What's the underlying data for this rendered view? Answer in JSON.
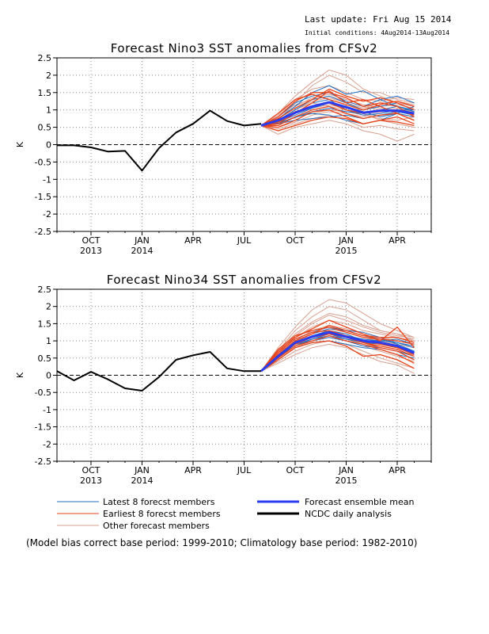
{
  "header": {
    "last_update": "Last update: Fri Aug 15 2014",
    "initial_conditions": "Initial conditions: 4Aug2014-13Aug2014"
  },
  "colors": {
    "latest": "#1f6fc4",
    "earliest": "#e8431a",
    "other": "#d8a090",
    "mean": "#2a3cf0",
    "analysis": "#000000",
    "grid": "#888888",
    "zero_line": "#000000"
  },
  "legend": {
    "latest": "Latest 8 forecst members",
    "earliest": "Earliest 8 forecst members",
    "other": "Other forecast members",
    "mean": "Forecast ensemble mean",
    "analysis": "NCDC daily analysis"
  },
  "footnote": "(Model bias correct base period: 1999-2010; Climatology base period: 1982-2010)",
  "chart_data": [
    {
      "type": "line",
      "title": "Forecast Nino3 SST anomalies from CFSv2",
      "ylabel": "K",
      "ylim": [
        -2.5,
        2.5
      ],
      "yticks": [
        "2.5",
        "2",
        "1.5",
        "1",
        "0.5",
        "0",
        "-0.5",
        "-1",
        "-1.5",
        "-2",
        "-2.5"
      ],
      "x_range_months": [
        "2013-08",
        "2015-06"
      ],
      "xtick_labels": [
        {
          "month": "2013-10",
          "label": "OCT",
          "year": "2013"
        },
        {
          "month": "2014-01",
          "label": "JAN",
          "year": "2014"
        },
        {
          "month": "2014-04",
          "label": "APR"
        },
        {
          "month": "2014-07",
          "label": "JUL"
        },
        {
          "month": "2014-10",
          "label": "OCT"
        },
        {
          "month": "2015-01",
          "label": "JAN",
          "year": "2015"
        },
        {
          "month": "2015-04",
          "label": "APR"
        }
      ],
      "grid": true,
      "analysis": {
        "name": "NCDC daily analysis",
        "x": [
          "2013-08",
          "2013-09",
          "2013-10",
          "2013-11",
          "2013-12",
          "2014-01",
          "2014-02",
          "2014-03",
          "2014-04",
          "2014-05",
          "2014-06",
          "2014-07",
          "2014-08"
        ],
        "y": [
          -0.02,
          -0.02,
          -0.08,
          -0.2,
          -0.18,
          -0.75,
          -0.1,
          0.35,
          0.6,
          0.98,
          0.68,
          0.55,
          0.6
        ]
      },
      "forecast_x": [
        "2014-08",
        "2014-09",
        "2014-10",
        "2014-11",
        "2014-12",
        "2015-01",
        "2015-02",
        "2015-03",
        "2015-04",
        "2015-05"
      ],
      "ensemble_mean": {
        "name": "Forecast ensemble mean",
        "y": [
          0.55,
          0.7,
          0.92,
          1.1,
          1.22,
          1.08,
          0.92,
          0.98,
          0.98,
          0.9
        ]
      },
      "latest_members": [
        [
          0.55,
          0.75,
          1.1,
          1.5,
          1.7,
          1.45,
          1.55,
          1.3,
          1.1,
          1.0
        ],
        [
          0.55,
          0.6,
          0.8,
          0.9,
          0.85,
          0.7,
          0.6,
          0.7,
          0.9,
          0.8
        ],
        [
          0.55,
          0.7,
          1.0,
          1.3,
          1.4,
          1.2,
          1.0,
          1.1,
          1.2,
          1.0
        ],
        [
          0.55,
          0.65,
          0.85,
          1.05,
          1.2,
          1.1,
          0.95,
          0.8,
          0.9,
          1.1
        ],
        [
          0.55,
          0.8,
          1.2,
          1.4,
          1.5,
          1.25,
          1.1,
          1.3,
          1.4,
          1.2
        ],
        [
          0.55,
          0.6,
          0.7,
          0.75,
          0.8,
          0.85,
          0.75,
          0.85,
          0.95,
          0.85
        ],
        [
          0.55,
          0.7,
          0.9,
          1.2,
          1.3,
          1.0,
          0.85,
          0.9,
          1.0,
          1.0
        ],
        [
          0.55,
          0.62,
          0.78,
          0.95,
          1.05,
          0.95,
          0.9,
          1.0,
          1.1,
          0.95
        ]
      ],
      "earliest_members": [
        [
          0.55,
          0.6,
          0.9,
          1.2,
          1.55,
          1.2,
          1.3,
          1.1,
          0.9,
          0.7
        ],
        [
          0.55,
          0.5,
          0.7,
          0.95,
          1.0,
          0.8,
          0.6,
          0.7,
          0.8,
          0.6
        ],
        [
          0.55,
          0.8,
          1.25,
          1.5,
          1.5,
          1.35,
          1.1,
          1.2,
          1.1,
          0.8
        ],
        [
          0.55,
          0.4,
          0.55,
          0.7,
          0.8,
          0.75,
          0.6,
          0.7,
          0.65,
          0.55
        ],
        [
          0.55,
          0.75,
          1.05,
          1.3,
          1.6,
          1.4,
          1.25,
          1.35,
          1.2,
          1.0
        ],
        [
          0.55,
          0.65,
          0.95,
          1.1,
          1.2,
          1.0,
          0.9,
          0.95,
          1.0,
          0.85
        ],
        [
          0.55,
          0.9,
          1.3,
          1.45,
          1.3,
          1.15,
          1.0,
          1.15,
          1.25,
          1.1
        ],
        [
          0.55,
          0.55,
          0.8,
          1.0,
          1.1,
          0.9,
          0.75,
          0.85,
          0.9,
          0.7
        ]
      ],
      "other_members": [
        [
          0.55,
          0.9,
          1.4,
          1.8,
          2.15,
          2.0,
          1.6,
          1.4,
          1.2,
          1.1
        ],
        [
          0.55,
          0.7,
          1.2,
          1.7,
          2.0,
          1.8,
          1.5,
          1.5,
          1.3,
          1.2
        ],
        [
          0.55,
          0.3,
          0.5,
          0.6,
          0.7,
          0.6,
          0.4,
          0.3,
          0.1,
          0.3
        ],
        [
          0.55,
          0.6,
          1.0,
          1.2,
          1.1,
          1.0,
          0.9,
          0.7,
          0.6,
          0.5
        ],
        [
          0.55,
          0.75,
          1.1,
          1.35,
          1.45,
          1.3,
          1.15,
          1.05,
          0.9,
          0.8
        ],
        [
          0.55,
          0.5,
          0.65,
          0.85,
          0.95,
          0.9,
          0.8,
          0.9,
          1.0,
          0.95
        ],
        [
          0.55,
          0.85,
          1.3,
          1.6,
          1.7,
          1.5,
          1.3,
          1.25,
          1.35,
          1.3
        ],
        [
          0.55,
          0.45,
          0.6,
          0.75,
          0.85,
          0.7,
          0.5,
          0.55,
          0.45,
          0.4
        ],
        [
          0.55,
          0.65,
          0.9,
          1.05,
          1.15,
          1.05,
          1.0,
          1.1,
          1.15,
          1.05
        ],
        [
          0.55,
          0.8,
          1.15,
          1.3,
          1.4,
          1.25,
          1.1,
          1.0,
          1.05,
          0.95
        ],
        [
          0.55,
          0.6,
          0.8,
          0.9,
          1.0,
          0.95,
          0.85,
          0.75,
          0.7,
          0.8
        ],
        [
          0.55,
          0.7,
          1.0,
          1.25,
          1.35,
          1.2,
          1.05,
          1.2,
          1.25,
          1.15
        ]
      ]
    },
    {
      "type": "line",
      "title": "Forecast Nino34 SST anomalies from CFSv2",
      "ylabel": "K",
      "ylim": [
        -2.5,
        2.5
      ],
      "yticks": [
        "2.5",
        "2",
        "1.5",
        "1",
        "0.5",
        "0",
        "-0.5",
        "-1",
        "-1.5",
        "-2",
        "-2.5"
      ],
      "x_range_months": [
        "2013-08",
        "2015-06"
      ],
      "xtick_labels": [
        {
          "month": "2013-10",
          "label": "OCT",
          "year": "2013"
        },
        {
          "month": "2014-01",
          "label": "JAN",
          "year": "2014"
        },
        {
          "month": "2014-04",
          "label": "APR"
        },
        {
          "month": "2014-07",
          "label": "JUL"
        },
        {
          "month": "2014-10",
          "label": "OCT"
        },
        {
          "month": "2015-01",
          "label": "JAN",
          "year": "2015"
        },
        {
          "month": "2015-04",
          "label": "APR"
        }
      ],
      "grid": true,
      "analysis": {
        "name": "NCDC daily analysis",
        "x": [
          "2013-08",
          "2013-09",
          "2013-10",
          "2013-11",
          "2013-12",
          "2014-01",
          "2014-02",
          "2014-03",
          "2014-04",
          "2014-05",
          "2014-06",
          "2014-07",
          "2014-08"
        ],
        "y": [
          0.12,
          -0.15,
          0.1,
          -0.12,
          -0.38,
          -0.45,
          -0.05,
          0.45,
          0.58,
          0.68,
          0.2,
          0.12,
          0.12
        ]
      },
      "forecast_x": [
        "2014-08",
        "2014-09",
        "2014-10",
        "2014-11",
        "2014-12",
        "2015-01",
        "2015-02",
        "2015-03",
        "2015-04",
        "2015-05"
      ],
      "ensemble_mean": {
        "name": "Forecast ensemble mean",
        "y": [
          0.12,
          0.55,
          0.95,
          1.12,
          1.25,
          1.12,
          1.0,
          0.95,
          0.85,
          0.65
        ]
      },
      "latest_members": [
        [
          0.12,
          0.6,
          1.0,
          1.2,
          1.35,
          1.3,
          1.25,
          1.1,
          0.9,
          0.7
        ],
        [
          0.12,
          0.5,
          0.9,
          1.0,
          1.1,
          1.0,
          0.85,
          0.8,
          0.7,
          0.55
        ],
        [
          0.12,
          0.55,
          0.95,
          1.15,
          1.3,
          1.2,
          1.0,
          1.0,
          0.95,
          0.8
        ],
        [
          0.12,
          0.45,
          0.8,
          0.95,
          1.0,
          0.9,
          0.8,
          0.75,
          0.6,
          0.5
        ],
        [
          0.12,
          0.65,
          1.05,
          1.25,
          1.4,
          1.3,
          1.15,
          1.05,
          0.95,
          0.85
        ],
        [
          0.12,
          0.5,
          0.85,
          1.05,
          1.2,
          1.05,
          0.95,
          0.9,
          0.8,
          0.65
        ],
        [
          0.12,
          0.6,
          0.95,
          1.1,
          1.25,
          1.15,
          1.05,
          1.0,
          1.05,
          0.9
        ],
        [
          0.12,
          0.55,
          0.9,
          1.05,
          1.15,
          1.05,
          0.95,
          0.95,
          0.85,
          0.7
        ]
      ],
      "earliest_members": [
        [
          0.12,
          0.7,
          1.1,
          1.35,
          1.6,
          1.4,
          1.2,
          1.0,
          1.4,
          0.8
        ],
        [
          0.12,
          0.55,
          0.9,
          1.1,
          1.25,
          1.1,
          0.95,
          0.8,
          0.7,
          0.45
        ],
        [
          0.12,
          0.75,
          1.15,
          1.3,
          1.4,
          1.25,
          1.1,
          1.05,
          1.0,
          0.9
        ],
        [
          0.12,
          0.45,
          0.8,
          0.95,
          1.0,
          0.85,
          0.55,
          0.6,
          0.45,
          0.2
        ],
        [
          0.12,
          0.6,
          1.0,
          1.2,
          1.45,
          1.3,
          1.15,
          1.1,
          1.1,
          0.95
        ],
        [
          0.12,
          0.5,
          0.85,
          1.0,
          1.15,
          1.0,
          0.9,
          0.75,
          0.6,
          0.35
        ],
        [
          0.12,
          0.65,
          1.05,
          1.25,
          1.3,
          1.15,
          1.0,
          0.9,
          0.8,
          0.6
        ],
        [
          0.12,
          0.55,
          0.95,
          1.1,
          1.2,
          1.1,
          0.95,
          0.85,
          0.75,
          0.55
        ]
      ],
      "other_members": [
        [
          0.12,
          0.8,
          1.4,
          1.9,
          2.2,
          2.1,
          1.8,
          1.5,
          1.3,
          1.1
        ],
        [
          0.12,
          0.7,
          1.3,
          1.7,
          2.0,
          1.9,
          1.6,
          1.3,
          1.2,
          1.0
        ],
        [
          0.12,
          0.35,
          0.6,
          0.8,
          0.9,
          0.8,
          0.6,
          0.4,
          0.3,
          0.05
        ],
        [
          0.12,
          0.5,
          0.9,
          1.15,
          1.25,
          1.15,
          1.0,
          0.9,
          0.8,
          0.7
        ],
        [
          0.12,
          0.6,
          1.1,
          1.4,
          1.6,
          1.5,
          1.3,
          1.2,
          1.1,
          1.0
        ],
        [
          0.12,
          0.45,
          0.8,
          1.0,
          1.1,
          1.0,
          0.85,
          0.7,
          0.55,
          0.4
        ],
        [
          0.12,
          0.65,
          1.15,
          1.5,
          1.75,
          1.6,
          1.4,
          1.25,
          1.15,
          1.05
        ],
        [
          0.12,
          0.4,
          0.7,
          0.9,
          1.0,
          0.9,
          0.7,
          0.5,
          0.35,
          0.2
        ],
        [
          0.12,
          0.55,
          0.95,
          1.2,
          1.35,
          1.25,
          1.1,
          1.0,
          0.9,
          0.8
        ],
        [
          0.12,
          0.6,
          1.0,
          1.3,
          1.45,
          1.35,
          1.2,
          1.1,
          1.0,
          0.9
        ],
        [
          0.12,
          0.5,
          0.85,
          1.05,
          1.15,
          1.05,
          0.9,
          0.8,
          0.7,
          0.6
        ],
        [
          0.12,
          0.7,
          1.2,
          1.55,
          1.8,
          1.7,
          1.45,
          1.3,
          1.2,
          1.1
        ]
      ]
    }
  ]
}
